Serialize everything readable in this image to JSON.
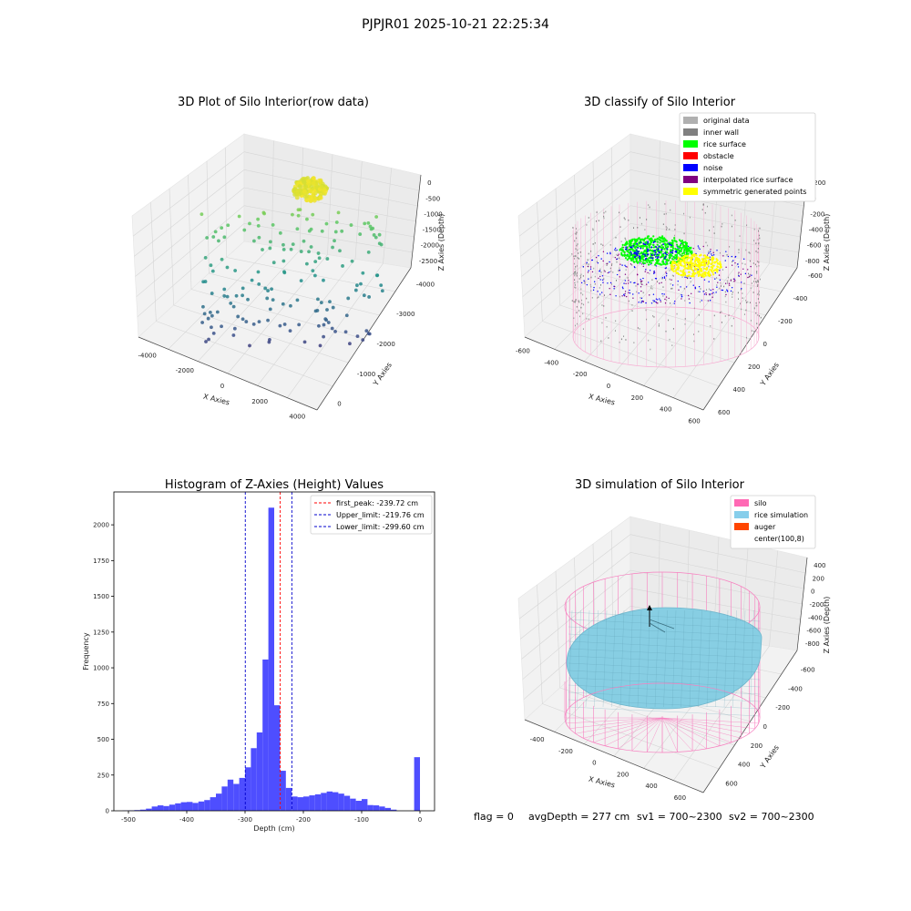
{
  "figure_title": "PJPJR01 2025-10-21 22:25:34",
  "status_line": {
    "flag": "flag = 0",
    "avg_depth": "avgDepth = 277 cm",
    "sv1": "sv1 = 700~2300",
    "sv2": "sv2 = 700~2300"
  },
  "colors": {
    "histogram_bar": "#4444ff",
    "first_peak_line": "#ff0000",
    "limit_lines": "#0000cc",
    "silo_wire": "#f77fbf",
    "rice_simulation": "#87cee3",
    "auger": "#ff4500"
  },
  "chart_data": [
    {
      "type": "scatter",
      "projection": "3d",
      "title": "3D Plot of Silo Interior(row data)",
      "xlabel": "X Axies",
      "ylabel": "Y Axies",
      "zlabel": "Z Axies (Depth)",
      "x_ticks": [
        "-4000",
        "-2000",
        "0",
        "2000",
        "4000"
      ],
      "y_ticks": [
        "-4000",
        "-3000",
        "-2000",
        "-1000",
        "0"
      ],
      "z_ticks": [
        "0",
        "-500",
        "-1000",
        "-1500",
        "-2000",
        "-2500"
      ],
      "colormap": "viridis",
      "grid": true
    },
    {
      "type": "scatter",
      "projection": "3d",
      "title": "3D classify of Silo Interior",
      "xlabel": "X Axies",
      "ylabel": "Y Axies",
      "zlabel": "Z Axies (Depth)",
      "x_ticks": [
        "-600",
        "-400",
        "-200",
        "0",
        "200",
        "400",
        "600"
      ],
      "y_ticks": [
        "-600",
        "-400",
        "-200",
        "0",
        "200",
        "400",
        "600"
      ],
      "z_ticks": [
        "200",
        "0",
        "-200",
        "-400",
        "-600",
        "-800"
      ],
      "legend_position": "top-right",
      "legend": [
        {
          "label": "original data",
          "color": "#b0b0b0"
        },
        {
          "label": "inner wall",
          "color": "#808080"
        },
        {
          "label": "rice surface",
          "color": "#00ff00"
        },
        {
          "label": "obstacle",
          "color": "#ff0000"
        },
        {
          "label": "noise",
          "color": "#0000ff"
        },
        {
          "label": "interpolated rice surface",
          "color": "#800080"
        },
        {
          "label": "symmetric generated points",
          "color": "#ffff00"
        }
      ],
      "grid": true
    },
    {
      "type": "bar",
      "title": "Histogram of Z-Axies (Height) Values",
      "xlabel": "Depth (cm)",
      "ylabel": "Frequency",
      "xlim": [
        -525,
        25
      ],
      "ylim": [
        0,
        2230
      ],
      "x_ticks": [
        "-500",
        "-400",
        "-300",
        "-200",
        "-100",
        "0"
      ],
      "y_ticks": [
        "0",
        "250",
        "500",
        "750",
        "1000",
        "1250",
        "1500",
        "1750",
        "2000"
      ],
      "bin_width": 10,
      "bin_starts": [
        -510,
        -500,
        -490,
        -480,
        -470,
        -460,
        -450,
        -440,
        -430,
        -420,
        -410,
        -400,
        -390,
        -380,
        -370,
        -360,
        -350,
        -340,
        -330,
        -320,
        -310,
        -300,
        -290,
        -280,
        -270,
        -260,
        -250,
        -240,
        -230,
        -220,
        -210,
        -200,
        -190,
        -180,
        -170,
        -160,
        -150,
        -140,
        -130,
        -120,
        -110,
        -100,
        -90,
        -80,
        -70,
        -60,
        -50,
        -40,
        -30,
        -20,
        -10,
        0
      ],
      "values": [
        2,
        3,
        5,
        8,
        15,
        30,
        38,
        33,
        43,
        52,
        60,
        62,
        55,
        65,
        75,
        95,
        120,
        170,
        218,
        188,
        230,
        304,
        438,
        548,
        1058,
        2120,
        738,
        280,
        160,
        100,
        95,
        100,
        108,
        115,
        125,
        135,
        130,
        120,
        105,
        85,
        70,
        82,
        40,
        38,
        30,
        20,
        8,
        0,
        0,
        0,
        375,
        0
      ],
      "lines": [
        {
          "label": "first_peak: -239.72 cm",
          "x": -239.72,
          "color": "#ff0000"
        },
        {
          "label": "Upper_limit: -219.76 cm",
          "x": -219.76,
          "color": "#0000cc"
        },
        {
          "label": "Lower_limit: -299.60 cm",
          "x": -299.6,
          "color": "#0000cc"
        }
      ],
      "legend_position": "top-right",
      "grid": false
    },
    {
      "type": "surface",
      "projection": "3d",
      "title": "3D simulation of Silo Interior",
      "xlabel": "X Axies",
      "ylabel": "Y Axies",
      "zlabel": "Z Axies (Depth)",
      "x_ticks": [
        "-400",
        "-200",
        "0",
        "200",
        "400",
        "600"
      ],
      "y_ticks": [
        "-600",
        "-400",
        "-200",
        "0",
        "200",
        "400",
        "600"
      ],
      "z_ticks": [
        "400",
        "200",
        "0",
        "-200",
        "-400",
        "-600",
        "-800"
      ],
      "legend_position": "top-right",
      "legend": [
        {
          "label": "silo",
          "color": "#ff69b4"
        },
        {
          "label": "rice simulation",
          "color": "#87ceeb"
        },
        {
          "label": "auger",
          "color": "#ff4500"
        },
        {
          "label": "center(100,8)",
          "color": "#ffffff"
        }
      ],
      "grid": true
    }
  ]
}
